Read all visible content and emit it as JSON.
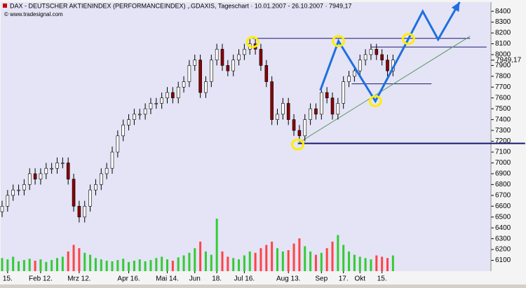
{
  "chart_data": {
    "type": "candlestick",
    "title": "DAX - DEUTSCHER AKTIENINDEX (PERFORMANCEINDEX) ,.GDAXIS, Tageschart · 10.01.2007 - 26.10.2007 · 7949,17",
    "source": "© www.tradesignal.com",
    "categories": [
      null,
      "15.",
      null,
      null,
      null,
      null,
      null,
      "Feb 12.",
      null,
      null,
      null,
      null,
      null,
      null,
      "Mrz 12.",
      null,
      null,
      null,
      null,
      null,
      null,
      null,
      null,
      "Apr 16.",
      null,
      null,
      null,
      null,
      null,
      null,
      "Mai 14.",
      null,
      null,
      null,
      null,
      "Jun",
      null,
      null,
      null,
      "18.",
      null,
      null,
      null,
      null,
      "Jul 16.",
      null,
      null,
      null,
      null,
      null,
      null,
      null,
      "Aug 13.",
      null,
      null,
      null,
      null,
      null,
      "Sep",
      null,
      null,
      null,
      "17.",
      null,
      null,
      "Okt",
      null,
      null,
      null,
      "15.",
      null,
      null
    ],
    "open": [
      6550,
      6600,
      6700,
      6750,
      6750,
      6800,
      6900,
      6850,
      6900,
      6950,
      6950,
      7000,
      7000,
      6850,
      6600,
      6500,
      6600,
      6750,
      6800,
      6900,
      6950,
      7100,
      7250,
      7350,
      7400,
      7450,
      7450,
      7500,
      7550,
      7550,
      7600,
      7650,
      7600,
      7700,
      7750,
      7900,
      7950,
      7650,
      7750,
      7950,
      8050,
      7900,
      7850,
      7950,
      8000,
      8050,
      8100,
      8050,
      7900,
      7750,
      7400,
      7450,
      7550,
      7400,
      7300,
      7250,
      7400,
      7500,
      7450,
      7650,
      7600,
      7450,
      7550,
      7750,
      7800,
      7850,
      7950,
      8000,
      8050,
      8000,
      7950,
      7850
    ],
    "high": [
      6650,
      6750,
      6800,
      6800,
      6850,
      6950,
      6950,
      6950,
      7000,
      7000,
      7050,
      7050,
      7050,
      6900,
      6650,
      6650,
      6800,
      6850,
      6950,
      7000,
      7150,
      7300,
      7400,
      7450,
      7500,
      7500,
      7550,
      7600,
      7600,
      7650,
      7700,
      7700,
      7750,
      7800,
      7950,
      8000,
      8000,
      7800,
      8000,
      8100,
      8100,
      7950,
      8000,
      8050,
      8100,
      8150,
      8150,
      8100,
      7950,
      7800,
      7500,
      7600,
      7600,
      7450,
      7350,
      7450,
      7550,
      7550,
      7700,
      7700,
      7650,
      7600,
      7800,
      7850,
      7900,
      8000,
      8050,
      8100,
      8100,
      8050,
      8000,
      8000
    ],
    "low": [
      6500,
      6550,
      6650,
      6700,
      6700,
      6750,
      6800,
      6800,
      6850,
      6900,
      6900,
      6950,
      6800,
      6550,
      6450,
      6450,
      6550,
      6700,
      6750,
      6850,
      6900,
      7050,
      7200,
      7300,
      7350,
      7400,
      7400,
      7450,
      7500,
      7500,
      7550,
      7550,
      7550,
      7650,
      7700,
      7850,
      7600,
      7600,
      7700,
      7900,
      7850,
      7800,
      7800,
      7900,
      7950,
      8000,
      8000,
      7850,
      7700,
      7350,
      7350,
      7400,
      7350,
      7250,
      7200,
      7200,
      7350,
      7400,
      7400,
      7550,
      7400,
      7400,
      7500,
      7700,
      7750,
      7800,
      7900,
      7950,
      7950,
      7900,
      7800,
      7800
    ],
    "close": [
      6600,
      6700,
      6750,
      6750,
      6800,
      6900,
      6850,
      6900,
      6950,
      6950,
      7000,
      7000,
      6850,
      6600,
      6500,
      6600,
      6750,
      6800,
      6900,
      6950,
      7100,
      7250,
      7350,
      7400,
      7450,
      7450,
      7500,
      7550,
      7550,
      7600,
      7650,
      7600,
      7700,
      7750,
      7900,
      7950,
      7650,
      7750,
      7950,
      8050,
      7900,
      7850,
      7950,
      8000,
      8050,
      8100,
      8050,
      7900,
      7750,
      7400,
      7450,
      7550,
      7400,
      7300,
      7250,
      7400,
      7500,
      7450,
      7650,
      7600,
      7450,
      7550,
      7750,
      7800,
      7850,
      7950,
      8000,
      8050,
      8000,
      7950,
      7850,
      7950
    ],
    "volume": [
      20,
      18,
      22,
      15,
      17,
      19,
      16,
      18,
      14,
      17,
      20,
      22,
      30,
      40,
      35,
      28,
      25,
      20,
      18,
      16,
      15,
      17,
      19,
      14,
      16,
      18,
      15,
      17,
      20,
      22,
      18,
      16,
      21,
      24,
      28,
      35,
      45,
      30,
      25,
      80,
      30,
      22,
      20,
      18,
      24,
      30,
      28,
      35,
      40,
      45,
      35,
      30,
      32,
      42,
      50,
      38,
      30,
      25,
      28,
      35,
      45,
      55,
      40,
      30,
      25,
      22,
      20,
      18,
      24,
      22,
      20,
      24
    ],
    "last_price": {
      "value": 7949.17,
      "label": "7949,17"
    },
    "ylim": [
      6000,
      8485
    ],
    "yticks": [
      6100,
      6200,
      6300,
      6400,
      6500,
      6600,
      6700,
      6800,
      6900,
      7000,
      7100,
      7200,
      7300,
      7400,
      7500,
      7600,
      7700,
      7800,
      7900,
      8000,
      8100,
      8200,
      8300,
      8400
    ],
    "drawings": {
      "hlines": [
        {
          "price": 8150,
          "from": 45.5,
          "to": 85
        },
        {
          "price": 8070,
          "from": 67,
          "to": 88
        },
        {
          "price": 7730,
          "from": 63.5,
          "to": 78
        },
        {
          "price": 7180,
          "from": 53.7,
          "to": 95
        }
      ],
      "trendline": {
        "x": [
          53.7,
          85
        ],
        "price": [
          7180,
          8170
        ]
      },
      "zigzag": {
        "x": [
          57.8,
          61.1,
          67.8,
          73.8,
          76.4,
          79.2,
          83.1
        ],
        "price": [
          7670,
          8125,
          7570,
          8145,
          8400,
          8140,
          8485
        ]
      },
      "circles": {
        "x": [
          45.5,
          61.1,
          67.8,
          73.8,
          53.7
        ],
        "price": [
          8115,
          8125,
          7570,
          8145,
          7170
        ]
      }
    },
    "colors": {
      "up": "#ffffff",
      "down": "#8b0000",
      "wick": "#000000",
      "volume_up": "#33cc33",
      "volume_down": "#ff4444",
      "zigzag": "#1e6fe0",
      "circle": "#ffee00",
      "hline": "#1a1a6e",
      "trendline": "#5a9a5a",
      "background": "#e4e4f6"
    }
  }
}
